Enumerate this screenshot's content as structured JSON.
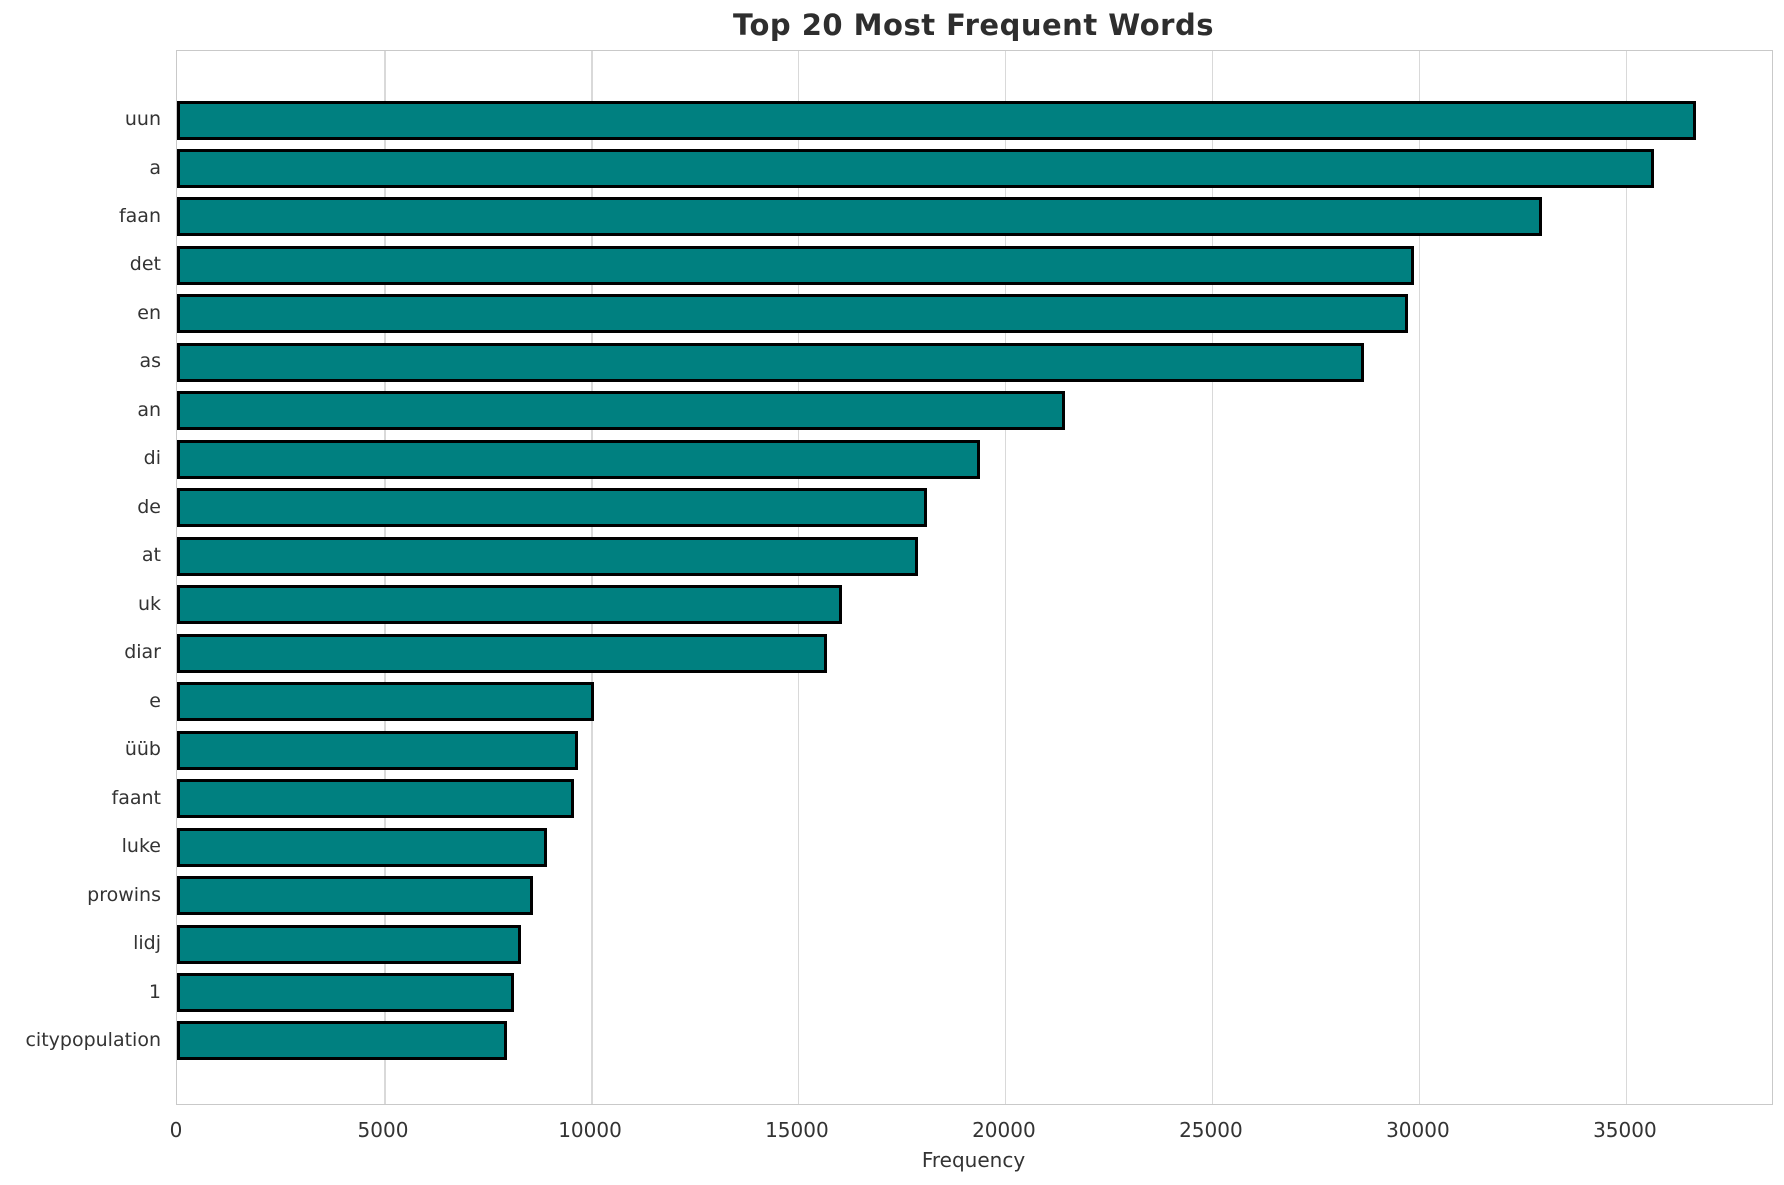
{
  "title": "Top 20 Most Frequent Words",
  "chart_data": {
    "type": "bar",
    "orientation": "horizontal",
    "title": "Top 20 Most Frequent Words",
    "xlabel": "Frequency",
    "ylabel": "",
    "categories": [
      "uun",
      "a",
      "faan",
      "det",
      "en",
      "as",
      "an",
      "di",
      "de",
      "at",
      "uk",
      "diar",
      "e",
      "üüb",
      "faant",
      "luke",
      "prowins",
      "lidj",
      "1",
      "citypopulation"
    ],
    "values": [
      36690,
      35680,
      32970,
      29880,
      29730,
      28670,
      21450,
      19400,
      18120,
      17900,
      16060,
      15700,
      10070,
      9690,
      9590,
      8940,
      8600,
      8310,
      8140,
      7970
    ],
    "xlim": [
      0,
      38530
    ],
    "x_ticks": [
      0,
      5000,
      10000,
      15000,
      20000,
      25000,
      30000,
      35000
    ],
    "grid": true,
    "legend": "none",
    "bar_color": "#008080",
    "bar_edge_color": "#000000",
    "grid_color": "#d9d9d9",
    "text_color": "#333333",
    "title_color": "#2e2e2e",
    "background_color": "#ffffff"
  }
}
